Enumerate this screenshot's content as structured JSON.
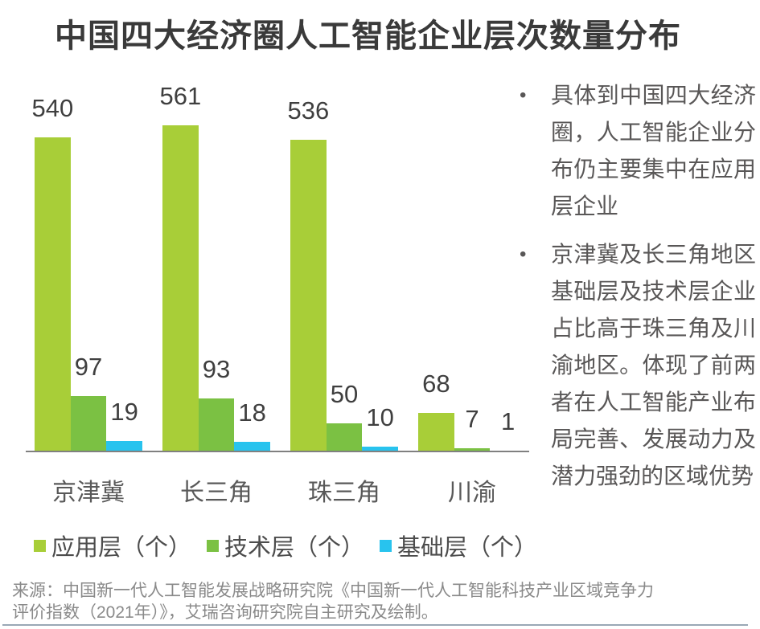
{
  "title": "中国四大经济圈人工智能企业层次数量分布",
  "chart_data": {
    "type": "bar",
    "title": "中国四大经济圈人工智能企业层次数量分布",
    "categories": [
      "京津冀",
      "长三角",
      "珠三角",
      "川渝"
    ],
    "series": [
      {
        "name": "应用层（个）",
        "color": "#a8ce38",
        "values": [
          540,
          561,
          536,
          68
        ]
      },
      {
        "name": "技术层（个）",
        "color": "#7bc143",
        "values": [
          97,
          93,
          50,
          7
        ]
      },
      {
        "name": "基础层（个）",
        "color": "#28c3ee",
        "values": [
          19,
          18,
          10,
          1
        ]
      }
    ],
    "xlabel": "",
    "ylabel": "",
    "ylim": [
      0,
      561
    ],
    "grid": false,
    "value_labels": true,
    "legend_position": "bottom",
    "axis_line_color": "#808080",
    "value_label_color": "#3f3f3f"
  },
  "insights": {
    "bullets": [
      "具体到中国四大经济圈，人工智能企业分布仍主要集中在应用层企业",
      "京津冀及长三角地区基础层及技术层企业占比高于珠三角及川渝地区。体现了前两者在人工智能产业布局完善、发展动力及潜力强劲的区域优势"
    ],
    "marker": "•"
  },
  "source": {
    "line1": "来源：中国新一代人工智能发展战略研究院《中国新一代人工智能科技产业区域竞争力",
    "line2": "评价指数（2021年）》，艾瑞咨询研究院自主研究及绘制。"
  }
}
